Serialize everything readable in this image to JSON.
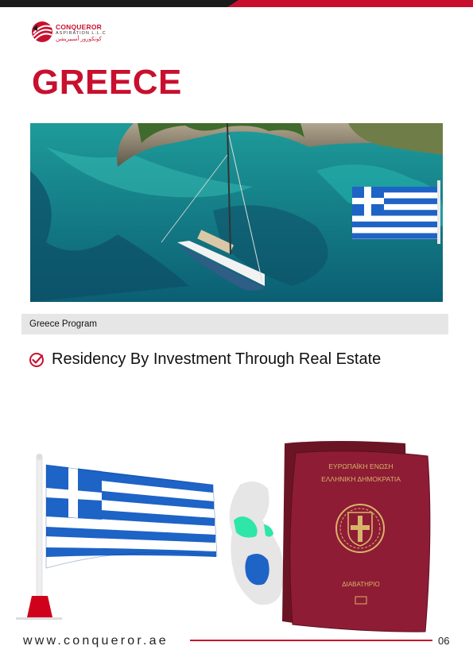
{
  "brand": {
    "name": "CONQUEROR",
    "sub": "ASPIRATION L.L.C",
    "arabic": "كونكورور أسبيريشن",
    "primary_color": "#c8102e",
    "dark_color": "#1b1b1b"
  },
  "page": {
    "title": "GREECE",
    "program_label": "Greece Program",
    "feature_text": "Residency By Investment Through Real Estate"
  },
  "passport": {
    "line1": "ΕΥΡΩΠΑΪΚΗ ΕΝΩΣΗ",
    "line2": "ΕΛΛΗΝΙΚΗ ΔΗΜΟΚΡΑΤΙΑ",
    "line3": "ΔΙΑΒΑΤΗΡΙΟ"
  },
  "footer": {
    "url": "www.conqueror.ae",
    "page_number": "06"
  },
  "icons": {
    "logo": "conqueror-logo-icon",
    "check": "check-circle-icon",
    "emblem": "greek-coat-of-arms-icon"
  }
}
